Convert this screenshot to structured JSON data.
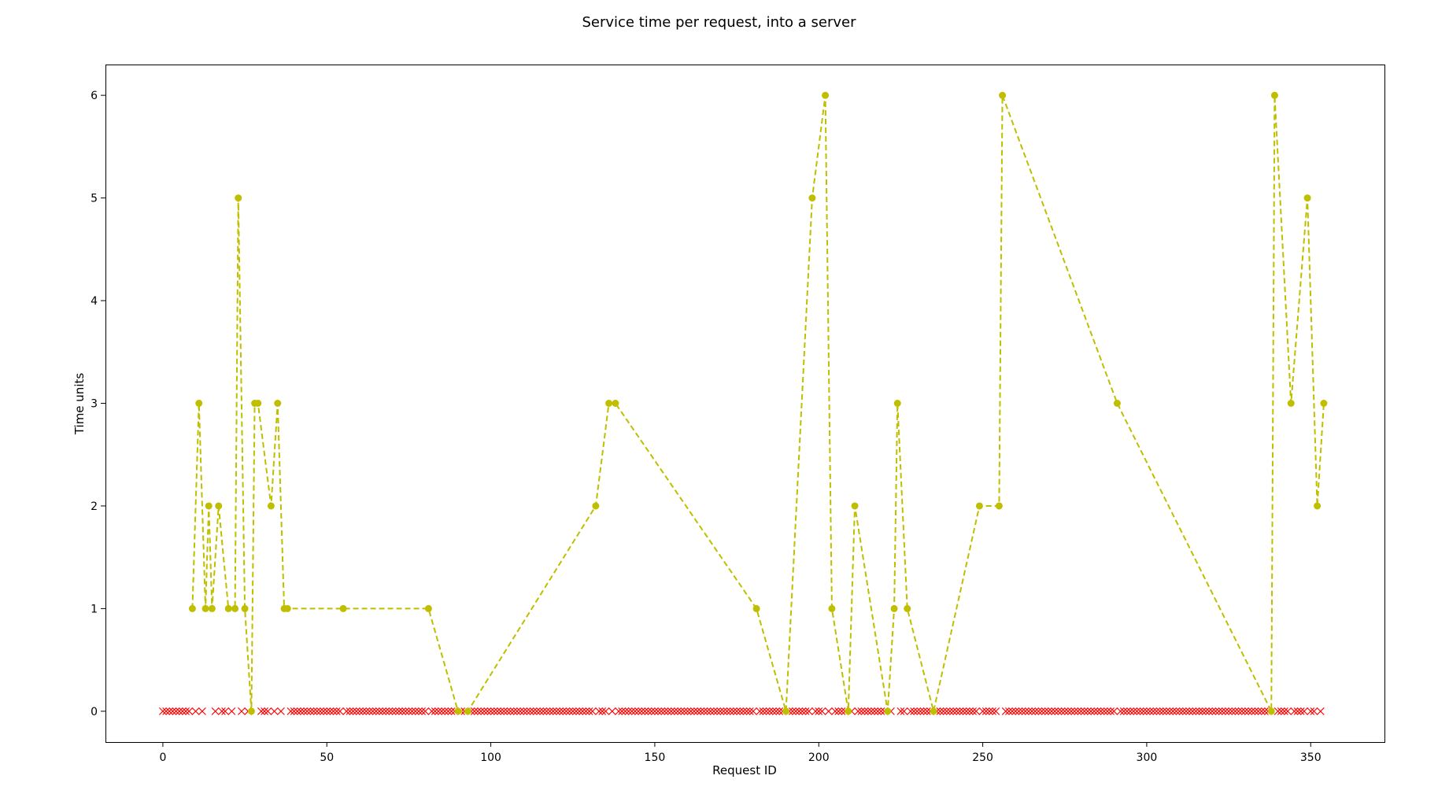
{
  "chart_data": {
    "type": "line",
    "title": "Service time per request, into a server",
    "xlabel": "Request ID",
    "ylabel": "Time units",
    "xlim": [
      -17.5,
      372.5
    ],
    "ylim": [
      -0.3,
      6.3
    ],
    "xticks": [
      0,
      50,
      100,
      150,
      200,
      250,
      300,
      350
    ],
    "yticks": [
      0,
      1,
      2,
      3,
      4,
      5,
      6
    ],
    "grid": false,
    "colors": {
      "served": "#bfbf00",
      "dropped": "#ff0000"
    },
    "series": [
      {
        "marker": "circle",
        "line": "dashed",
        "x": [
          9,
          11,
          13,
          14,
          15,
          17,
          20,
          22,
          23,
          25,
          27,
          28,
          29,
          33,
          35,
          37,
          38,
          55,
          81,
          90,
          93,
          132,
          136,
          138,
          181,
          190,
          198,
          202,
          204,
          209,
          211,
          221,
          223,
          224,
          227,
          235,
          249,
          255,
          256,
          291,
          338,
          339,
          344,
          349,
          352,
          354
        ],
        "values": [
          1,
          3,
          1,
          2,
          1,
          2,
          1,
          1,
          5,
          1,
          0,
          3,
          3,
          2,
          3,
          1,
          1,
          1,
          1,
          0,
          0,
          2,
          3,
          3,
          1,
          0,
          5,
          6,
          1,
          0,
          2,
          0,
          1,
          3,
          1,
          0,
          2,
          2,
          6,
          3,
          0,
          6,
          3,
          5,
          2,
          3
        ]
      },
      {
        "marker": "x",
        "line": "none",
        "x_ranges": [
          [
            0,
            8
          ],
          [
            10,
            10
          ],
          [
            12,
            12
          ],
          [
            16,
            16
          ],
          [
            18,
            19
          ],
          [
            21,
            21
          ],
          [
            24,
            24
          ],
          [
            26,
            26
          ],
          [
            30,
            32
          ],
          [
            34,
            34
          ],
          [
            36,
            36
          ],
          [
            39,
            54
          ],
          [
            56,
            80
          ],
          [
            82,
            89
          ],
          [
            91,
            92
          ],
          [
            94,
            131
          ],
          [
            133,
            135
          ],
          [
            137,
            137
          ],
          [
            139,
            180
          ],
          [
            182,
            189
          ],
          [
            191,
            197
          ],
          [
            199,
            201
          ],
          [
            203,
            203
          ],
          [
            205,
            208
          ],
          [
            210,
            210
          ],
          [
            212,
            220
          ],
          [
            222,
            222
          ],
          [
            225,
            226
          ],
          [
            228,
            234
          ],
          [
            236,
            248
          ],
          [
            250,
            254
          ],
          [
            257,
            290
          ],
          [
            292,
            337
          ],
          [
            340,
            343
          ],
          [
            345,
            348
          ],
          [
            350,
            351
          ],
          [
            353,
            353
          ]
        ],
        "value": 0
      }
    ]
  }
}
